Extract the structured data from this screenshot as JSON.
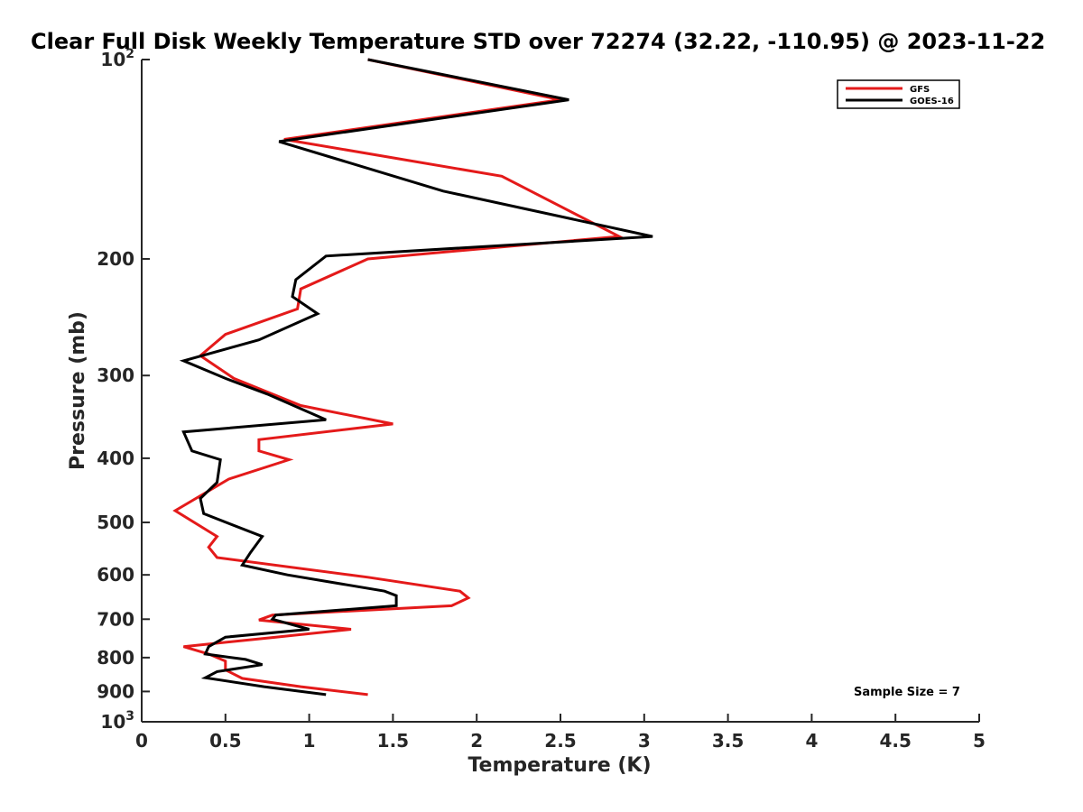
{
  "chart_data": {
    "type": "line",
    "title": "Clear Full Disk Weekly Temperature STD over 72274 (32.22, -110.95) @ 2023-11-22",
    "xlabel": "Temperature (K)",
    "ylabel": "Pressure (mb)",
    "xlim": [
      0,
      5
    ],
    "ylim": [
      100,
      1000
    ],
    "y_scale": "log",
    "y_reversed": true,
    "grid": false,
    "legend_position": "top-right",
    "x_ticks": [
      {
        "value": 0,
        "label": "0"
      },
      {
        "value": 0.5,
        "label": "0.5"
      },
      {
        "value": 1,
        "label": "1"
      },
      {
        "value": 1.5,
        "label": "1.5"
      },
      {
        "value": 2,
        "label": "2"
      },
      {
        "value": 2.5,
        "label": "2.5"
      },
      {
        "value": 3,
        "label": "3"
      },
      {
        "value": 3.5,
        "label": "3.5"
      },
      {
        "value": 4,
        "label": "4"
      },
      {
        "value": 4.5,
        "label": "4.5"
      },
      {
        "value": 5,
        "label": "5"
      }
    ],
    "y_ticks": [
      {
        "value": 100,
        "base": "10",
        "exp": "2"
      },
      {
        "value": 200,
        "label": "200"
      },
      {
        "value": 300,
        "label": "300"
      },
      {
        "value": 400,
        "label": "400"
      },
      {
        "value": 500,
        "label": "500"
      },
      {
        "value": 600,
        "label": "600"
      },
      {
        "value": 700,
        "label": "700"
      },
      {
        "value": 800,
        "label": "800"
      },
      {
        "value": 900,
        "label": "900"
      },
      {
        "value": 1000,
        "base": "10",
        "exp": "3"
      }
    ],
    "series": [
      {
        "name": "GFS",
        "color": "#e41a1a",
        "points": [
          [
            1.35,
            100
          ],
          [
            2.5,
            115
          ],
          [
            0.85,
            132
          ],
          [
            2.15,
            150
          ],
          [
            2.85,
            185
          ],
          [
            1.35,
            200
          ],
          [
            0.95,
            222
          ],
          [
            0.93,
            238
          ],
          [
            0.5,
            260
          ],
          [
            0.35,
            280
          ],
          [
            0.55,
            303
          ],
          [
            0.95,
            333
          ],
          [
            1.5,
            355
          ],
          [
            0.7,
            375
          ],
          [
            0.7,
            390
          ],
          [
            0.88,
            402
          ],
          [
            0.52,
            430
          ],
          [
            0.2,
            480
          ],
          [
            0.45,
            525
          ],
          [
            0.4,
            545
          ],
          [
            0.45,
            565
          ],
          [
            1.35,
            605
          ],
          [
            1.9,
            635
          ],
          [
            1.95,
            650
          ],
          [
            1.85,
            668
          ],
          [
            0.78,
            690
          ],
          [
            0.7,
            702
          ],
          [
            1.25,
            725
          ],
          [
            0.8,
            745
          ],
          [
            0.25,
            770
          ],
          [
            0.4,
            790
          ],
          [
            0.5,
            810
          ],
          [
            0.5,
            835
          ],
          [
            0.6,
            860
          ],
          [
            0.95,
            885
          ],
          [
            1.35,
            910
          ]
        ]
      },
      {
        "name": "GOES-16",
        "color": "#000000",
        "points": [
          [
            1.35,
            100
          ],
          [
            2.55,
            115
          ],
          [
            0.82,
            133
          ],
          [
            1.8,
            158
          ],
          [
            3.05,
            185
          ],
          [
            1.1,
            198
          ],
          [
            0.92,
            215
          ],
          [
            0.9,
            228
          ],
          [
            1.05,
            242
          ],
          [
            0.7,
            265
          ],
          [
            0.25,
            285
          ],
          [
            0.5,
            303
          ],
          [
            0.75,
            320
          ],
          [
            1.1,
            350
          ],
          [
            0.25,
            365
          ],
          [
            0.3,
            390
          ],
          [
            0.47,
            402
          ],
          [
            0.45,
            435
          ],
          [
            0.35,
            460
          ],
          [
            0.37,
            485
          ],
          [
            0.72,
            525
          ],
          [
            0.65,
            555
          ],
          [
            0.6,
            580
          ],
          [
            0.87,
            600
          ],
          [
            1.45,
            635
          ],
          [
            1.52,
            645
          ],
          [
            1.52,
            668
          ],
          [
            0.8,
            690
          ],
          [
            0.78,
            700
          ],
          [
            1.0,
            725
          ],
          [
            0.5,
            745
          ],
          [
            0.4,
            770
          ],
          [
            0.38,
            790
          ],
          [
            0.62,
            805
          ],
          [
            0.72,
            820
          ],
          [
            0.45,
            840
          ],
          [
            0.38,
            858
          ],
          [
            0.73,
            885
          ],
          [
            1.1,
            910
          ]
        ]
      }
    ],
    "legend": {
      "entries": [
        "GFS",
        "GOES-16"
      ]
    },
    "annotation": "Sample Size = 7"
  }
}
